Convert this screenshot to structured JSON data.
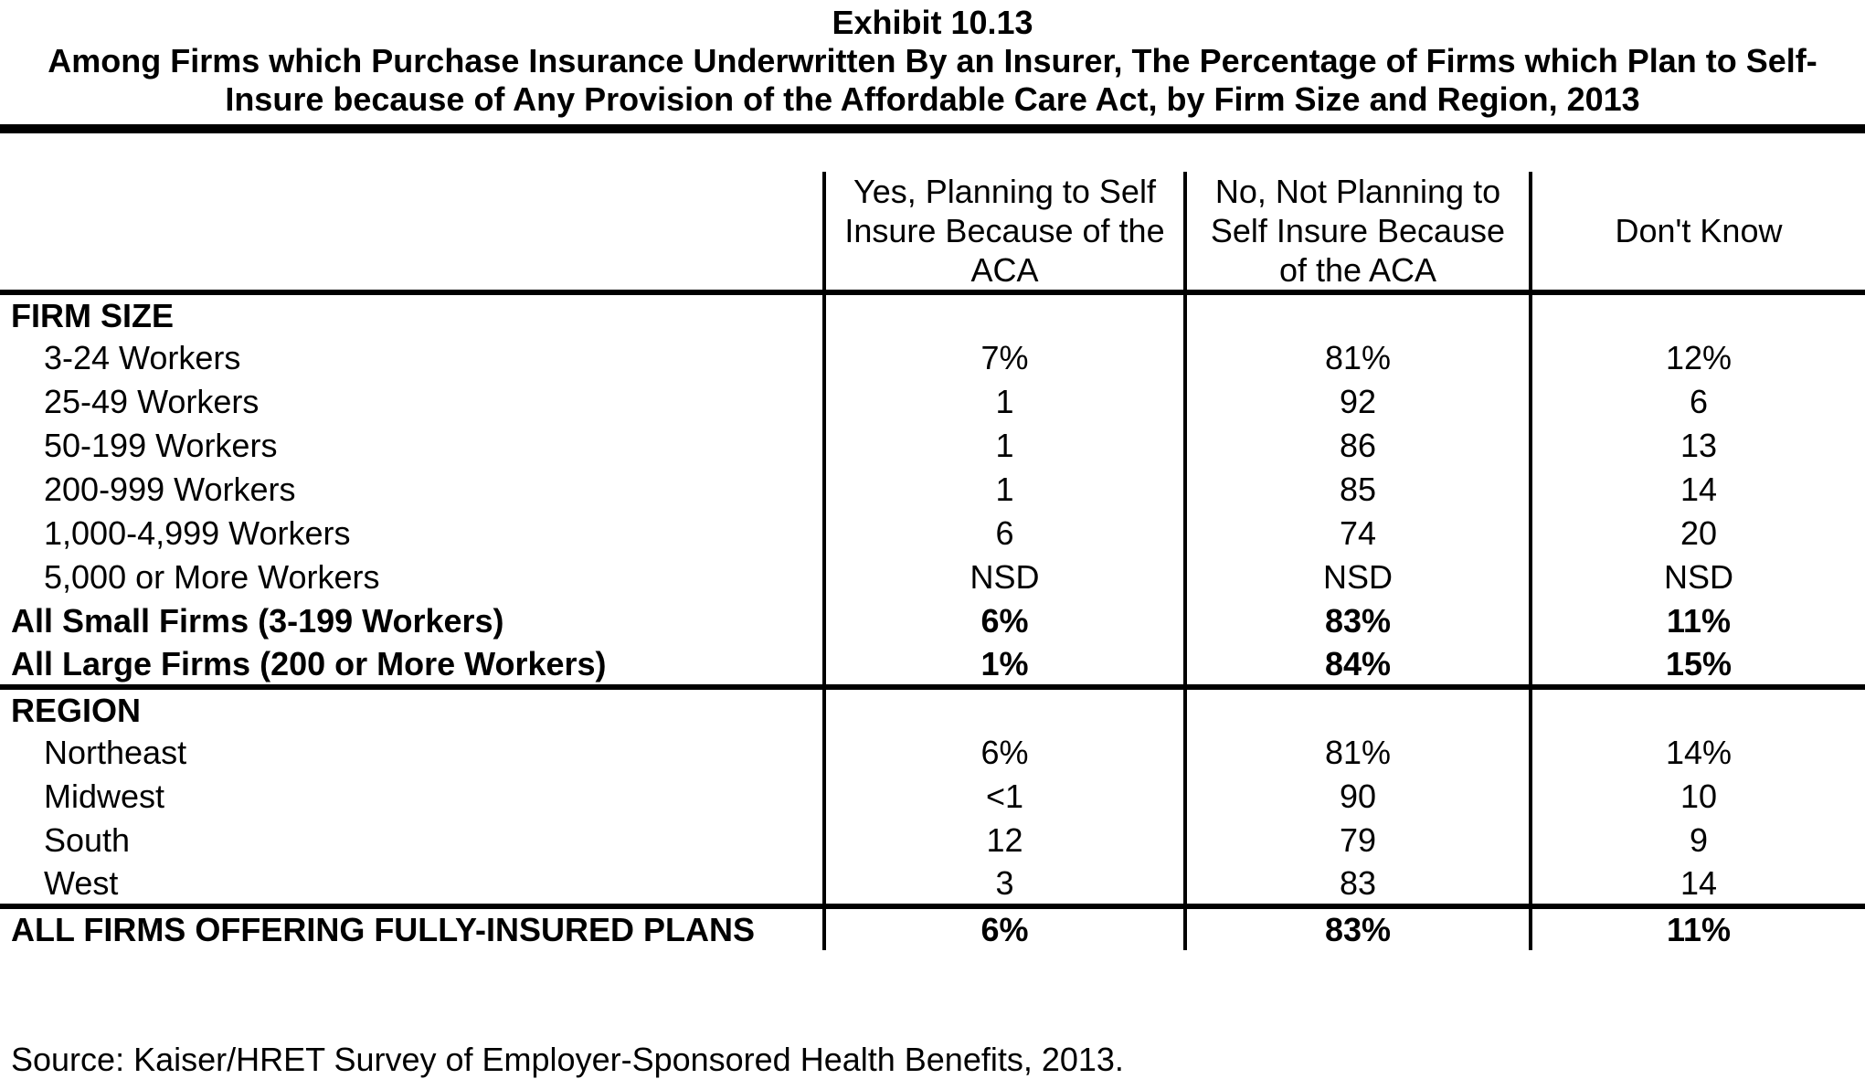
{
  "title": {
    "exhibit": "Exhibit 10.13",
    "subtitle": "Among Firms which Purchase Insurance Underwritten By an Insurer, The Percentage of Firms which Plan to Self-Insure because of Any Provision of the Affordable Care Act, by Firm Size and Region, 2013"
  },
  "table": {
    "columns": [
      "",
      "Yes, Planning to Self\nInsure Because of the\nACA",
      "No, Not Planning to\nSelf Insure Because\nof the ACA",
      "Don't Know"
    ],
    "rows": [
      {
        "label": "FIRM SIZE",
        "values": [
          "",
          "",
          ""
        ],
        "style": "section",
        "rule_below": false
      },
      {
        "label": "3-24 Workers",
        "values": [
          "7%",
          "81%",
          "12%"
        ],
        "style": "indent",
        "rule_below": false
      },
      {
        "label": "25-49 Workers",
        "values": [
          "1",
          "92",
          "6"
        ],
        "style": "indent",
        "rule_below": false
      },
      {
        "label": "50-199 Workers",
        "values": [
          "1",
          "86",
          "13"
        ],
        "style": "indent",
        "rule_below": false
      },
      {
        "label": "200-999 Workers",
        "values": [
          "1",
          "85",
          "14"
        ],
        "style": "indent",
        "rule_below": false
      },
      {
        "label": "1,000-4,999 Workers",
        "values": [
          "6",
          "74",
          "20"
        ],
        "style": "indent",
        "rule_below": false
      },
      {
        "label": "5,000 or More Workers",
        "values": [
          "NSD",
          "NSD",
          "NSD"
        ],
        "style": "indent",
        "rule_below": false
      },
      {
        "label": "All Small Firms (3-199 Workers)",
        "values": [
          "6%",
          "83%",
          "11%"
        ],
        "style": "bold",
        "rule_below": false
      },
      {
        "label": "All Large Firms (200 or More Workers)",
        "values": [
          "1%",
          "84%",
          "15%"
        ],
        "style": "bold",
        "rule_below": true
      },
      {
        "label": "REGION",
        "values": [
          "",
          "",
          ""
        ],
        "style": "section",
        "rule_below": false
      },
      {
        "label": "Northeast",
        "values": [
          "6%",
          "81%",
          "14%"
        ],
        "style": "indent",
        "rule_below": false
      },
      {
        "label": "Midwest",
        "values": [
          "<1",
          "90",
          "10"
        ],
        "style": "indent",
        "rule_below": false
      },
      {
        "label": "South",
        "values": [
          "12",
          "79",
          "9"
        ],
        "style": "indent",
        "rule_below": false
      },
      {
        "label": "West",
        "values": [
          "3",
          "83",
          "14"
        ],
        "style": "indent",
        "rule_below": true
      },
      {
        "label": "ALL FIRMS OFFERING FULLY-INSURED PLANS",
        "values": [
          "6%",
          "83%",
          "11%"
        ],
        "style": "bold",
        "rule_below": false
      }
    ]
  },
  "source": "Source: Kaiser/HRET Survey of Employer-Sponsored Health Benefits, 2013."
}
